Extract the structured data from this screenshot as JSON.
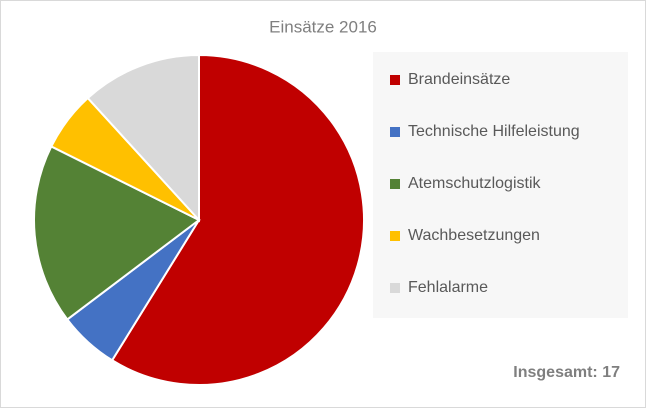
{
  "chart_data": {
    "type": "pie",
    "title": "Einsätze 2016",
    "categories": [
      "Brandeinsätze",
      "Technische Hilfeleistung",
      "Atemschutzlogistik",
      "Wachbesetzungen",
      "Fehlalarme"
    ],
    "values": [
      10,
      1,
      3,
      1,
      2
    ],
    "colors": [
      "#c00000",
      "#4472c4",
      "#548235",
      "#ffc000",
      "#d9d9d9"
    ],
    "annotation": "Insgesamt: 17"
  }
}
